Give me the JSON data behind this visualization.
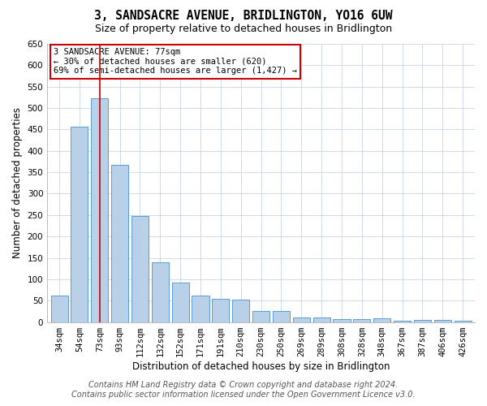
{
  "title": "3, SANDSACRE AVENUE, BRIDLINGTON, YO16 6UW",
  "subtitle": "Size of property relative to detached houses in Bridlington",
  "xlabel": "Distribution of detached houses by size in Bridlington",
  "ylabel": "Number of detached properties",
  "categories": [
    "34sqm",
    "54sqm",
    "73sqm",
    "93sqm",
    "112sqm",
    "132sqm",
    "152sqm",
    "171sqm",
    "191sqm",
    "210sqm",
    "230sqm",
    "250sqm",
    "269sqm",
    "289sqm",
    "308sqm",
    "328sqm",
    "348sqm",
    "367sqm",
    "387sqm",
    "406sqm",
    "426sqm"
  ],
  "values": [
    62,
    456,
    522,
    368,
    248,
    140,
    92,
    62,
    55,
    53,
    26,
    26,
    11,
    11,
    6,
    6,
    9,
    3,
    4,
    4,
    3
  ],
  "bar_color": "#b8d0e8",
  "bar_edge_color": "#5b9bd5",
  "highlight_bar_index": 2,
  "highlight_line_color": "#cc0000",
  "annotation_text": "3 SANDSACRE AVENUE: 77sqm\n← 30% of detached houses are smaller (620)\n69% of semi-detached houses are larger (1,427) →",
  "annotation_box_color": "#ffffff",
  "annotation_box_edge_color": "#cc0000",
  "ylim": [
    0,
    650
  ],
  "yticks": [
    0,
    50,
    100,
    150,
    200,
    250,
    300,
    350,
    400,
    450,
    500,
    550,
    600,
    650
  ],
  "bg_color": "#ffffff",
  "grid_color": "#c8d4e8",
  "footer_line1": "Contains HM Land Registry data © Crown copyright and database right 2024.",
  "footer_line2": "Contains public sector information licensed under the Open Government Licence v3.0.",
  "title_fontsize": 10.5,
  "subtitle_fontsize": 9,
  "axis_label_fontsize": 8.5,
  "tick_fontsize": 7.5,
  "footer_fontsize": 7
}
